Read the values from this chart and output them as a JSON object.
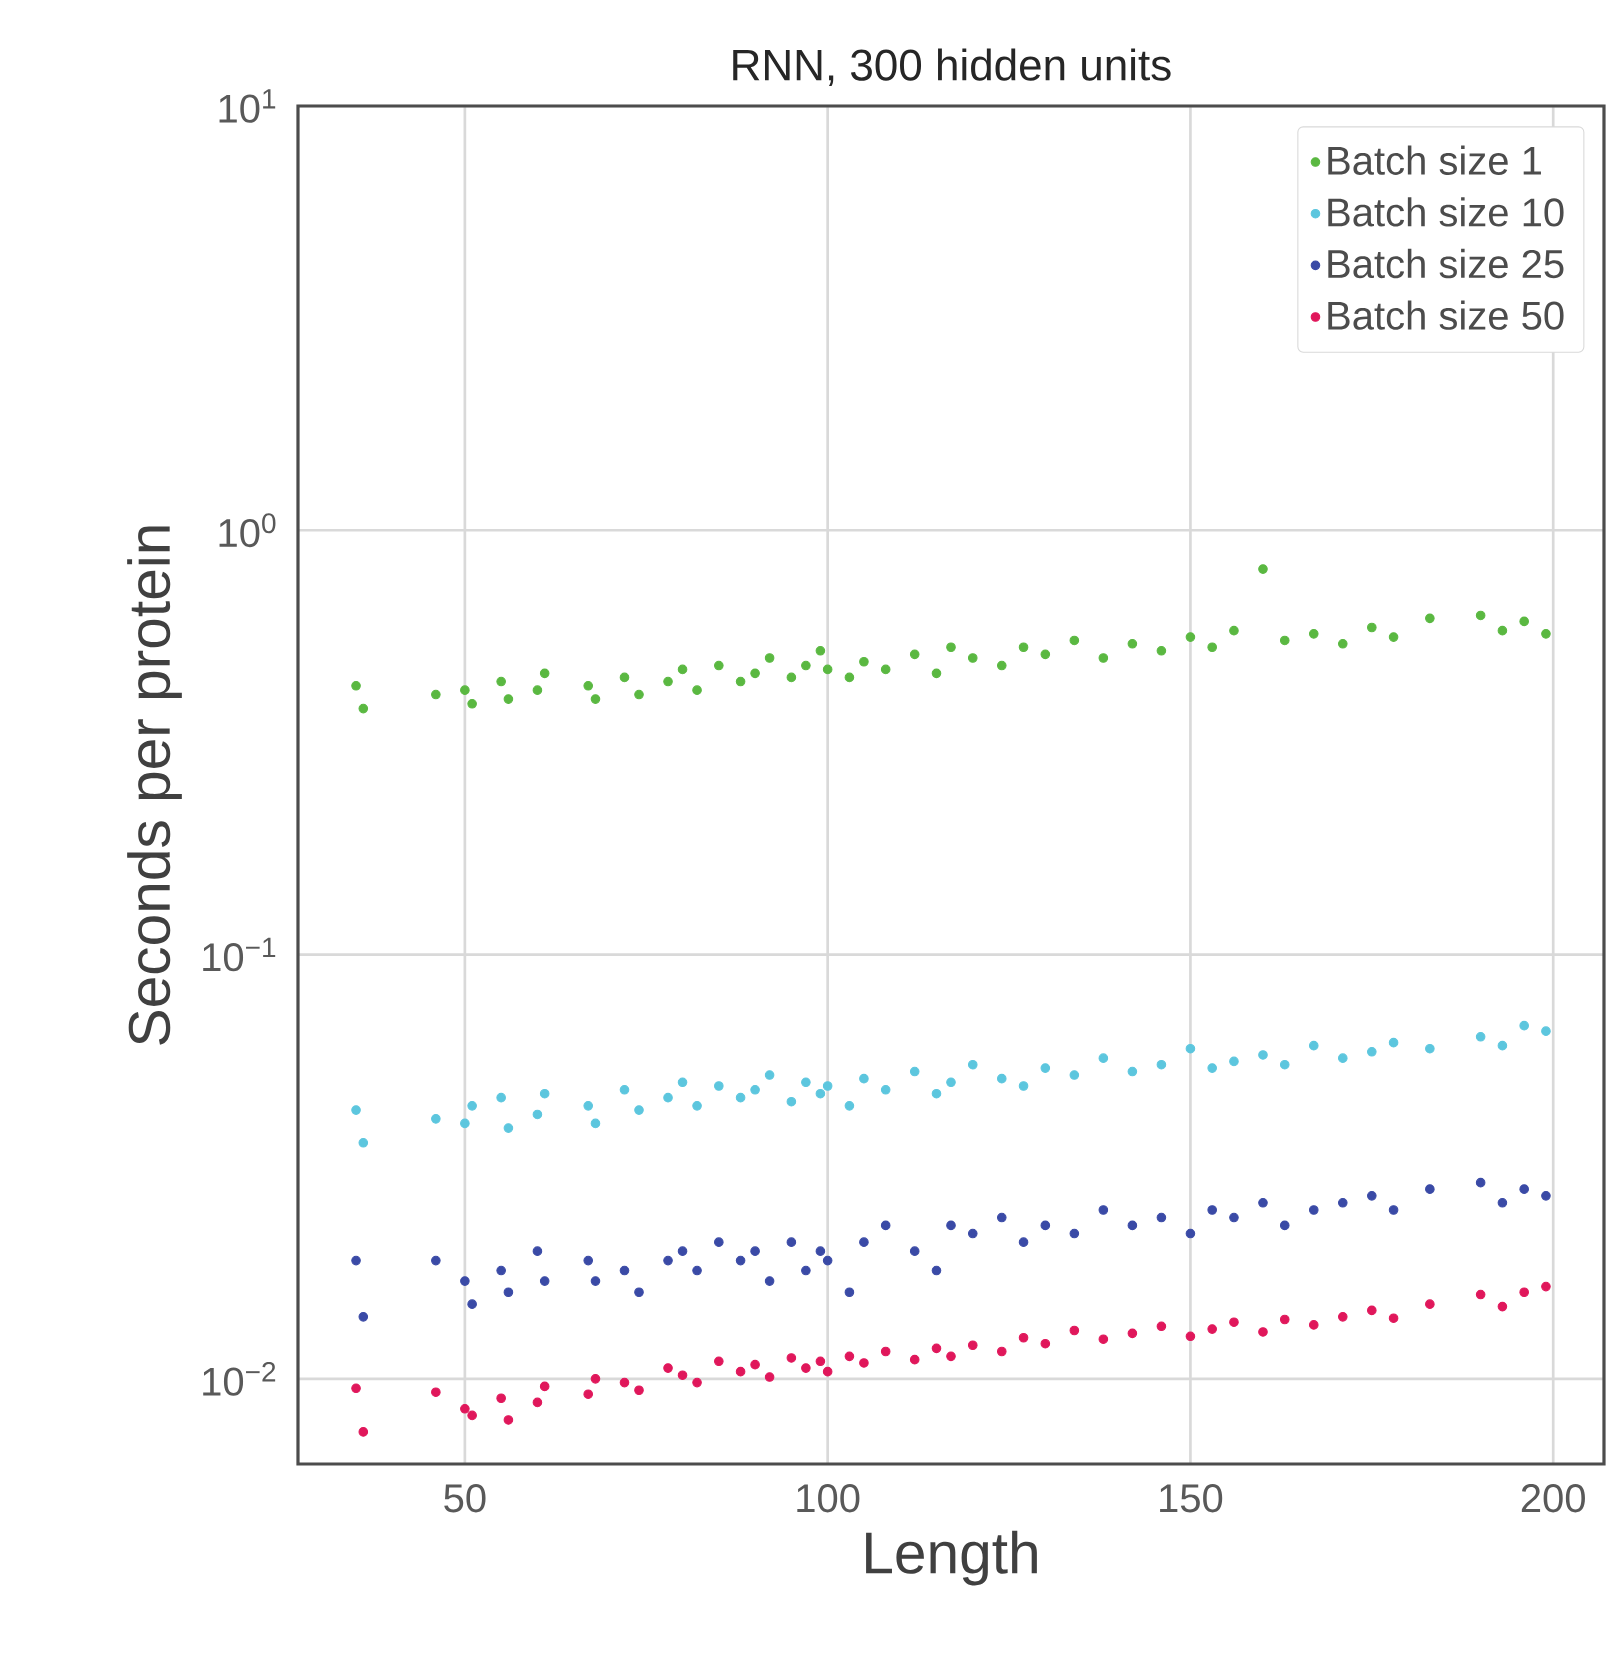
{
  "chart_data": {
    "type": "scatter",
    "title": "RNN, 300 hidden units",
    "xlabel": "Length",
    "ylabel": "Seconds per protein",
    "x": [
      35,
      36,
      46,
      50,
      51,
      55,
      56,
      60,
      61,
      67,
      68,
      72,
      74,
      78,
      80,
      82,
      85,
      88,
      90,
      92,
      95,
      97,
      99,
      100,
      103,
      105,
      108,
      112,
      115,
      117,
      120,
      124,
      127,
      130,
      134,
      138,
      142,
      146,
      150,
      153,
      156,
      160,
      163,
      167,
      171,
      175,
      178,
      183,
      190,
      193,
      196,
      199
    ],
    "series": [
      {
        "name": "Batch size 1",
        "color": "#5ab841",
        "values": [
          0.43,
          0.38,
          0.41,
          0.42,
          0.39,
          0.44,
          0.4,
          0.42,
          0.46,
          0.43,
          0.4,
          0.45,
          0.41,
          0.44,
          0.47,
          0.42,
          0.48,
          0.44,
          0.46,
          0.5,
          0.45,
          0.48,
          0.52,
          0.47,
          0.45,
          0.49,
          0.47,
          0.51,
          0.46,
          0.53,
          0.5,
          0.48,
          0.53,
          0.51,
          0.55,
          0.5,
          0.54,
          0.52,
          0.56,
          0.53,
          0.58,
          0.81,
          0.55,
          0.57,
          0.54,
          0.59,
          0.56,
          0.62,
          0.63,
          0.58,
          0.61,
          0.57
        ]
      },
      {
        "name": "Batch size 10",
        "color": "#5cc6de",
        "values": [
          0.043,
          0.036,
          0.041,
          0.04,
          0.044,
          0.046,
          0.039,
          0.042,
          0.047,
          0.044,
          0.04,
          0.048,
          0.043,
          0.046,
          0.05,
          0.044,
          0.049,
          0.046,
          0.048,
          0.052,
          0.045,
          0.05,
          0.047,
          0.049,
          0.044,
          0.051,
          0.048,
          0.053,
          0.047,
          0.05,
          0.055,
          0.051,
          0.049,
          0.054,
          0.052,
          0.057,
          0.053,
          0.055,
          0.06,
          0.054,
          0.056,
          0.058,
          0.055,
          0.061,
          0.057,
          0.059,
          0.062,
          0.06,
          0.064,
          0.061,
          0.068,
          0.066
        ]
      },
      {
        "name": "Batch size 25",
        "color": "#3a4aa6",
        "values": [
          0.019,
          0.014,
          0.019,
          0.017,
          0.015,
          0.018,
          0.016,
          0.02,
          0.017,
          0.019,
          0.017,
          0.018,
          0.016,
          0.019,
          0.02,
          0.018,
          0.021,
          0.019,
          0.02,
          0.017,
          0.021,
          0.018,
          0.02,
          0.019,
          0.016,
          0.021,
          0.023,
          0.02,
          0.018,
          0.023,
          0.022,
          0.024,
          0.021,
          0.023,
          0.022,
          0.025,
          0.023,
          0.024,
          0.022,
          0.025,
          0.024,
          0.026,
          0.023,
          0.025,
          0.026,
          0.027,
          0.025,
          0.028,
          0.029,
          0.026,
          0.028,
          0.027
        ]
      },
      {
        "name": "Batch size 50",
        "color": "#e0175b",
        "values": [
          0.0095,
          0.0075,
          0.0093,
          0.0085,
          0.0082,
          0.009,
          0.008,
          0.0088,
          0.0096,
          0.0092,
          0.01,
          0.0098,
          0.0094,
          0.0106,
          0.0102,
          0.0098,
          0.011,
          0.0104,
          0.0108,
          0.0101,
          0.0112,
          0.0106,
          0.011,
          0.0104,
          0.0113,
          0.0109,
          0.0116,
          0.0111,
          0.0118,
          0.0113,
          0.012,
          0.0116,
          0.0125,
          0.0121,
          0.013,
          0.0124,
          0.0128,
          0.0133,
          0.0126,
          0.0131,
          0.0136,
          0.0129,
          0.0138,
          0.0134,
          0.014,
          0.0145,
          0.0139,
          0.015,
          0.0158,
          0.0148,
          0.016,
          0.0165
        ]
      }
    ],
    "xlim": [
      27,
      207
    ],
    "ylim": [
      0.0063,
      10
    ],
    "xticks": [
      50,
      100,
      150,
      200
    ],
    "yticks": [
      {
        "value": 0.01,
        "label": "10$^{−2}$"
      },
      {
        "value": 0.1,
        "label": "10$^{−1}$"
      },
      {
        "value": 1,
        "label": "10$^{0}$"
      },
      {
        "value": 10,
        "label": "10$^{1}$"
      }
    ],
    "log": "y",
    "grid": true,
    "legend": "top right"
  }
}
